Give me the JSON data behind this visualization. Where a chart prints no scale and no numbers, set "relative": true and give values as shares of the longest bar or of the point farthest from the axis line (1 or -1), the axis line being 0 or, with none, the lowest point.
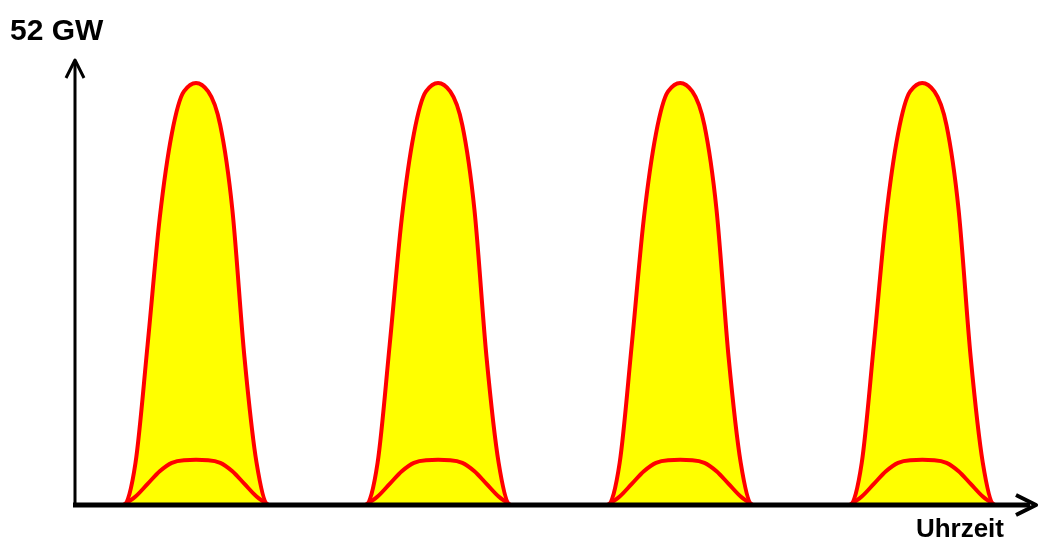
{
  "chart_data": {
    "type": "area",
    "relative": true,
    "annotations": [
      "52 GW",
      "Uhrzeit"
    ],
    "categories": [
      null,
      null,
      null,
      null,
      null,
      null,
      null,
      null,
      null,
      null,
      null,
      null,
      null,
      null,
      null,
      null,
      null,
      null,
      null,
      null,
      null,
      null,
      null,
      null,
      null,
      null,
      null,
      null,
      null,
      null,
      null,
      null,
      null,
      null,
      null,
      null,
      null,
      null,
      null,
      null,
      null,
      null,
      null,
      null,
      null,
      null,
      null,
      null,
      null,
      null,
      null,
      null,
      null,
      null,
      null,
      null,
      null,
      null,
      null,
      null,
      null,
      null,
      null,
      null,
      null,
      null,
      null,
      null,
      null,
      null,
      null,
      null,
      null,
      null,
      null,
      null,
      null,
      null
    ],
    "series": [
      {
        "color": "#ffff00",
        "values": [
          0,
          0,
          0,
          0,
          0,
          0.1,
          0.38,
          0.68,
          0.88,
          0.98,
          1,
          0.98,
          0.9,
          0.7,
          0.35,
          0.1,
          0,
          0,
          0,
          0,
          0,
          0,
          0,
          0,
          0,
          0.1,
          0.38,
          0.68,
          0.88,
          0.98,
          1,
          0.98,
          0.9,
          0.7,
          0.35,
          0.1,
          0,
          0,
          0,
          0,
          0,
          0,
          0,
          0,
          0,
          0.1,
          0.38,
          0.68,
          0.88,
          0.98,
          1,
          0.98,
          0.9,
          0.7,
          0.35,
          0.1,
          0,
          0,
          0,
          0,
          0,
          0,
          0,
          0,
          0,
          0.1,
          0.38,
          0.68,
          0.88,
          0.98,
          1,
          0.98,
          0.9,
          0.7,
          0.35,
          0.1,
          0,
          0
        ]
      },
      {
        "type": "line",
        "color": "#ff0000",
        "values": [
          null,
          null,
          null,
          null,
          0,
          0.02,
          0.05,
          0.08,
          0.1,
          0.106,
          0.107,
          0.106,
          0.1,
          0.08,
          0.05,
          0.02,
          0,
          null,
          null,
          null,
          null,
          null,
          null,
          null,
          0,
          0.02,
          0.05,
          0.08,
          0.1,
          0.106,
          0.107,
          0.106,
          0.1,
          0.08,
          0.05,
          0.02,
          0,
          null,
          null,
          null,
          null,
          null,
          null,
          null,
          0,
          0.02,
          0.05,
          0.08,
          0.1,
          0.106,
          0.107,
          0.106,
          0.1,
          0.08,
          0.05,
          0.02,
          0,
          null,
          null,
          null,
          null,
          null,
          null,
          null,
          0,
          0.02,
          0.05,
          0.08,
          0.1,
          0.106,
          0.107,
          0.106,
          0.1,
          0.08,
          0.05,
          0.02,
          0,
          null
        ]
      }
    ]
  }
}
